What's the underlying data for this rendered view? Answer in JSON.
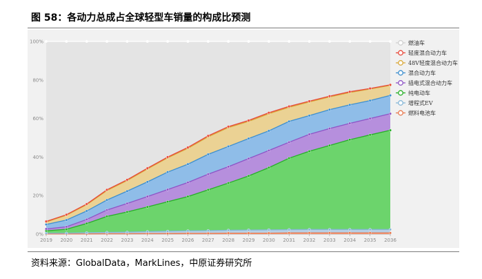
{
  "title": "图 58：各动力总成占全球轻型车销量的构成比预测",
  "source": "资料来源：GlobalData，MarkLines，中原证券研究所",
  "chart_data": {
    "type": "area",
    "stacked": true,
    "x": [
      "2019",
      "2020",
      "2021",
      "2022",
      "2023",
      "2024",
      "2025",
      "2026",
      "2027",
      "2028",
      "2029",
      "2030",
      "2031",
      "2032",
      "2033",
      "2034",
      "2035",
      "2036"
    ],
    "y_ticks": [
      "0%",
      "20%",
      "40%",
      "60%",
      "80%",
      "100%"
    ],
    "ylim": [
      0,
      100
    ],
    "grid": true,
    "legend_position": "right",
    "series": [
      {
        "name": "燃料电池车",
        "color": "#f2a385",
        "values": [
          0.1,
          0.1,
          0.1,
          0.2,
          0.2,
          0.3,
          0.3,
          0.4,
          0.4,
          0.5,
          0.5,
          0.5,
          0.6,
          0.6,
          0.6,
          0.6,
          0.6,
          0.6
        ]
      },
      {
        "name": "增程式EV",
        "color": "#b7cfe4",
        "values": [
          0.4,
          0.4,
          0.6,
          0.7,
          0.8,
          1.0,
          1.2,
          1.3,
          1.4,
          1.5,
          1.6,
          1.7,
          1.7,
          1.8,
          1.8,
          1.8,
          1.8,
          1.8
        ]
      },
      {
        "name": "纯电动车",
        "color": "#6cd46c",
        "values": [
          1.2,
          2.0,
          4.8,
          8.3,
          10.5,
          12.8,
          15.3,
          17.8,
          21.2,
          24.5,
          28.1,
          32.3,
          37.1,
          40.6,
          43.6,
          46.6,
          49.1,
          51.5
        ]
      },
      {
        "name": "插电式混合动力车",
        "color": "#b68fdd",
        "values": [
          1.0,
          1.3,
          2.1,
          3.3,
          4.4,
          5.4,
          6.3,
          7.3,
          8.1,
          8.5,
          9.0,
          8.9,
          8.3,
          8.8,
          8.8,
          8.5,
          8.5,
          8.6
        ]
      },
      {
        "name": "混合动力车",
        "color": "#8fbde8",
        "values": [
          2.3,
          3.5,
          4.4,
          5.2,
          6.4,
          7.6,
          9.1,
          9.5,
          10.3,
          10.5,
          10.4,
          10.2,
          10.8,
          9.7,
          9.8,
          9.6,
          9.3,
          9.5
        ]
      },
      {
        "name": "48V轻度混合动力车",
        "color": "#ebd294",
        "values": [
          1.3,
          2.5,
          3.3,
          4.9,
          5.5,
          6.7,
          7.4,
          8.2,
          9.1,
          9.8,
          8.9,
          8.9,
          7.3,
          7.1,
          6.6,
          6.4,
          6.0,
          5.2
        ]
      },
      {
        "name": "轻度混合动力车",
        "color": "#ef7c7c",
        "values": [
          0.3,
          0.3,
          0.3,
          0.4,
          0.4,
          0.4,
          0.4,
          0.5,
          0.5,
          0.5,
          0.5,
          0.5,
          0.5,
          0.4,
          0.4,
          0.4,
          0.3,
          0.3
        ]
      },
      {
        "name": "燃油车",
        "color": "#e4e4e4",
        "values": [
          93.4,
          89.9,
          84.4,
          77.0,
          71.8,
          65.8,
          60.0,
          55.0,
          49.0,
          44.2,
          41.0,
          37.0,
          33.7,
          31.0,
          28.4,
          26.1,
          24.4,
          22.5
        ]
      }
    ],
    "line_colors": {
      "燃油车": "#ffffff",
      "轻度混合动力车": "#e8493a",
      "48V轻度混合动力车": "#d9a93a",
      "混合动力车": "#3d8fcf",
      "插电式混合动力车": "#8e54c6",
      "纯电动车": "#26b026",
      "增程式EV": "#86b7d8",
      "燃料电池车": "#e8794f"
    },
    "legend_order": [
      "燃油车",
      "轻度混合动力车",
      "48V轻度混合动力车",
      "混合动力车",
      "插电式混合动力车",
      "纯电动车",
      "增程式EV",
      "燃料电池车"
    ]
  }
}
